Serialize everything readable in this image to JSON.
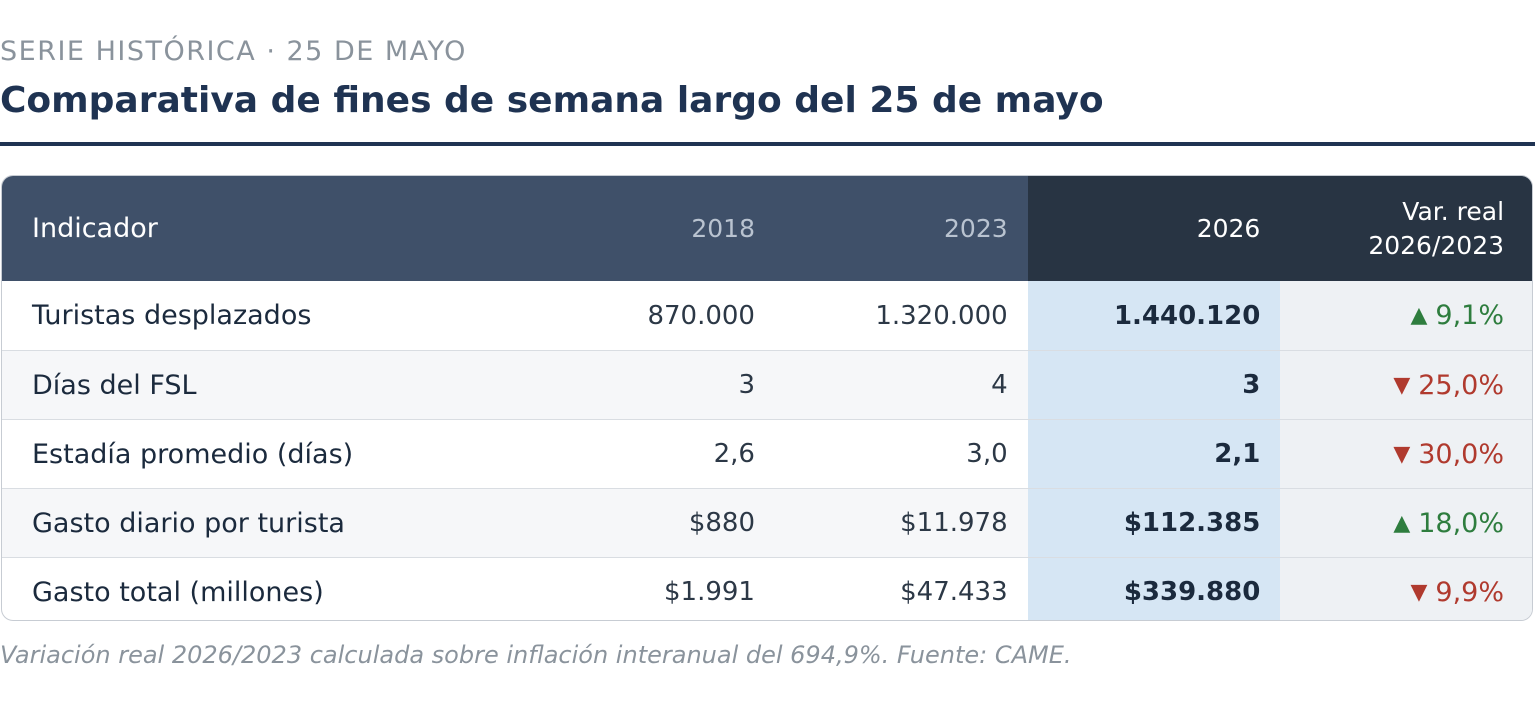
{
  "header": {
    "kicker": "SERIE HISTÓRICA · 25 DE MAYO",
    "title": "Comparativa de fines de semana largo del 25 de mayo"
  },
  "table": {
    "columns": [
      "Indicador",
      "2018",
      "2023",
      "2026",
      "Var. real",
      "2026/2023"
    ],
    "rows": [
      {
        "label": "Turistas desplazados",
        "y2018": "870.000",
        "y2023": "1.320.000",
        "y2026": "1.440.120",
        "arrow": "▲",
        "direction": "up",
        "var": "9,1%"
      },
      {
        "label": "Días del FSL",
        "y2018": "3",
        "y2023": "4",
        "y2026": "3",
        "arrow": "▼",
        "direction": "down",
        "var": "25,0%"
      },
      {
        "label": "Estadía promedio (días)",
        "y2018": "2,6",
        "y2023": "3,0",
        "y2026": "2,1",
        "arrow": "▼",
        "direction": "down",
        "var": "30,0%"
      },
      {
        "label": "Gasto diario por turista",
        "y2018": "$880",
        "y2023": "$11.978",
        "y2026": "$112.385",
        "arrow": "▲",
        "direction": "up",
        "var": "18,0%"
      },
      {
        "label": "Gasto total (millones)",
        "y2018": "$1.991",
        "y2023": "$47.433",
        "y2026": "$339.880",
        "arrow": "▼",
        "direction": "down",
        "var": "9,9%"
      }
    ]
  },
  "footnote": "Variación real 2026/2023 calculada sobre inflación interanual del 694,9%. Fuente: CAME.",
  "colors": {
    "header_bg": "#3f5069",
    "highlight_header_bg": "#283443",
    "highlight_col_bg": "#d6e6f4",
    "title": "#1f3352",
    "up": "#2e7d3e",
    "down": "#b03a2e"
  },
  "icons": {
    "up": "triangle-up-icon",
    "down": "triangle-down-icon"
  }
}
